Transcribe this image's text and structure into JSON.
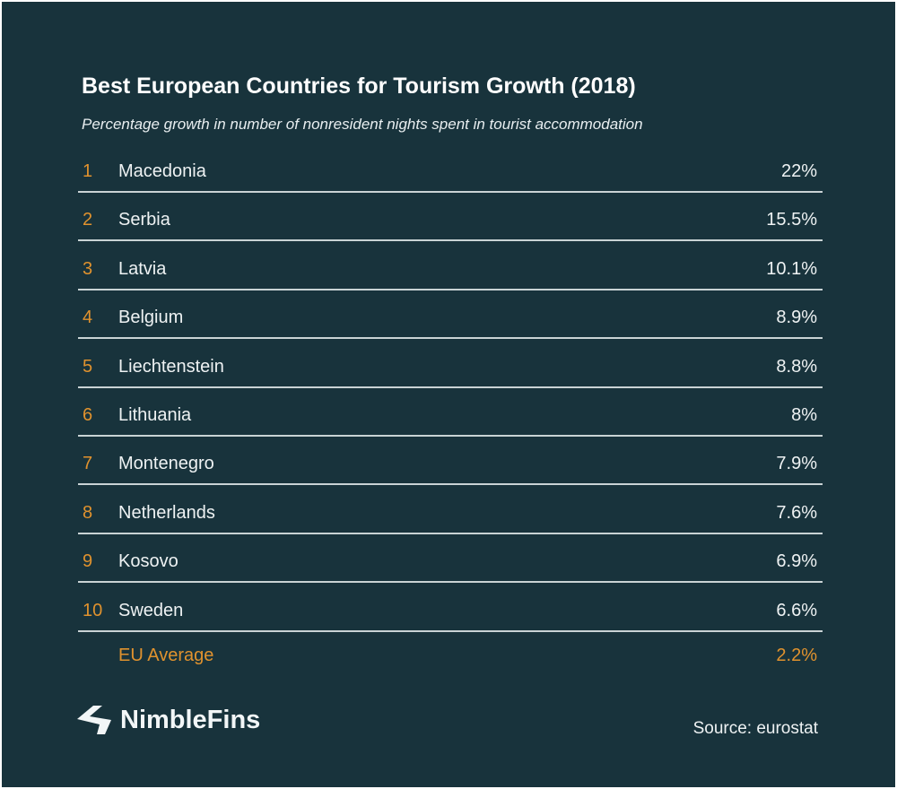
{
  "chart_data": {
    "type": "table",
    "title": "Best European Countries for Tourism Growth (2018)",
    "subtitle": "Percentage growth in number of nonresident nights spent in tourist accommodation",
    "rows": [
      {
        "rank": "1",
        "country": "Macedonia",
        "value": "22%"
      },
      {
        "rank": "2",
        "country": "Serbia",
        "value": "15.5%"
      },
      {
        "rank": "3",
        "country": "Latvia",
        "value": "10.1%"
      },
      {
        "rank": "4",
        "country": "Belgium",
        "value": "8.9%"
      },
      {
        "rank": "5",
        "country": "Liechtenstein",
        "value": "8.8%"
      },
      {
        "rank": "6",
        "country": "Lithuania",
        "value": "8%"
      },
      {
        "rank": "7",
        "country": "Montenegro",
        "value": "7.9%"
      },
      {
        "rank": "8",
        "country": "Netherlands",
        "value": "7.6%"
      },
      {
        "rank": "9",
        "country": "Kosovo",
        "value": "6.9%"
      },
      {
        "rank": "10",
        "country": "Sweden",
        "value": "6.6%"
      }
    ],
    "average": {
      "label": "EU Average",
      "value": "2.2%"
    }
  },
  "footer": {
    "logo": "NimbleFins",
    "source": "Source: eurostat"
  },
  "colors": {
    "background": "#18333c",
    "accent": "#e0922e",
    "text": "#eef2f3"
  }
}
